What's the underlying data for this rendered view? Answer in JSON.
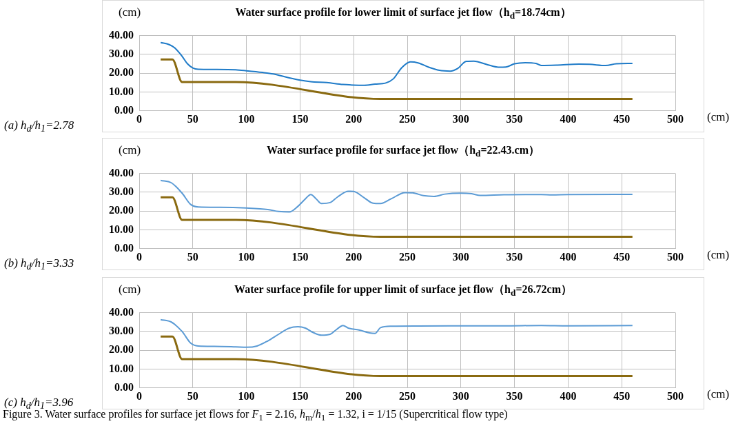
{
  "chart_data": [
    {
      "type": "line",
      "title": "Water surface profile for lower limit of surface jet flow（h$_{d}$=18.74cm）",
      "xlabel": "(cm)",
      "ylabel": "(cm)",
      "annotations": [
        "(a) h$_{d}$/h$_{1}$=2.78"
      ],
      "xlim": [
        0,
        500
      ],
      "xticks": [
        0,
        50,
        100,
        150,
        200,
        250,
        300,
        350,
        400,
        450,
        500
      ],
      "ylim": [
        0,
        40
      ],
      "yticks": [
        {
          "value": 0,
          "label": "0.00"
        },
        {
          "value": 10,
          "label": "10.00"
        },
        {
          "value": 20,
          "label": "20.00"
        },
        {
          "value": 30,
          "label": "30.00"
        },
        {
          "value": 40,
          "label": "40.00"
        }
      ],
      "grid": true,
      "legend": false,
      "marker": "none",
      "line_style": "solid",
      "series": [
        {
          "color": "#1f7bc8",
          "x": [
            20,
            28,
            33,
            40,
            45,
            50,
            55,
            70,
            90,
            100,
            115,
            125,
            140,
            150,
            160,
            175,
            190,
            200,
            210,
            220,
            230,
            237,
            245,
            253,
            260,
            270,
            280,
            290,
            297,
            305,
            312,
            325,
            335,
            342,
            350,
            360,
            370,
            375,
            390,
            410,
            420,
            435,
            445,
            460
          ],
          "values": [
            36.3,
            35.2,
            33.5,
            29,
            25,
            22.8,
            22.1,
            22,
            21.8,
            21.3,
            20.4,
            19.6,
            17.5,
            16.3,
            15.5,
            15,
            14,
            13.7,
            13.6,
            14.2,
            14.8,
            17,
            23,
            26,
            25.5,
            23.2,
            21.5,
            21.1,
            22.5,
            26.3,
            26.4,
            24.5,
            23.2,
            23.3,
            25,
            25.6,
            25.2,
            24.1,
            24.3,
            24.8,
            24.7,
            24.1,
            25,
            25.2
          ]
        },
        {
          "color": "#8a6a10",
          "x": [
            20,
            31,
            40,
            90,
            225,
            460
          ],
          "values": [
            27.3,
            27.3,
            15.3,
            15.3,
            6.3,
            6.3
          ]
        }
      ]
    },
    {
      "type": "line",
      "title": "Water surface profile for surface jet flow（h$_{d}$=22.43.cm）",
      "xlabel": "(cm)",
      "ylabel": "(cm)",
      "annotations": [
        "(b) h$_{d}$/h$_{1}$=3.33"
      ],
      "xlim": [
        0,
        500
      ],
      "xticks": [
        0,
        50,
        100,
        150,
        200,
        250,
        300,
        350,
        400,
        450,
        500
      ],
      "ylim": [
        0,
        40
      ],
      "yticks": [
        {
          "value": 0,
          "label": "0.00"
        },
        {
          "value": 10,
          "label": "10.00"
        },
        {
          "value": 20,
          "label": "20.00"
        },
        {
          "value": 30,
          "label": "30.00"
        },
        {
          "value": 40,
          "label": "40.00"
        }
      ],
      "grid": true,
      "legend": false,
      "marker": "none",
      "line_style": "solid",
      "series": [
        {
          "color": "#5b9bd5",
          "x": [
            20,
            30,
            40,
            48,
            55,
            75,
            100,
            120,
            130,
            140,
            148,
            155,
            160,
            165,
            170,
            178,
            185,
            195,
            200,
            210,
            218,
            225,
            235,
            248,
            255,
            265,
            275,
            285,
            300,
            310,
            318,
            340,
            360,
            375,
            385,
            400,
            460
          ],
          "values": [
            36.3,
            35,
            29.5,
            23.5,
            22.2,
            22,
            21.6,
            20.8,
            19.8,
            19.5,
            22.5,
            26.5,
            28.8,
            26.5,
            24,
            24.5,
            27.5,
            30.5,
            30.4,
            27,
            24.2,
            24,
            26.5,
            29.8,
            29.7,
            28.2,
            27.8,
            29,
            29.5,
            29.2,
            28.3,
            28.7,
            28.8,
            28.8,
            28.6,
            28.8,
            28.9
          ]
        },
        {
          "color": "#8a6a10",
          "x": [
            20,
            31,
            40,
            90,
            225,
            460
          ],
          "values": [
            27.3,
            27.3,
            15.3,
            15.3,
            6.3,
            6.3
          ]
        }
      ]
    },
    {
      "type": "line",
      "title": "Water surface profile for upper limit of surface jet flow（h$_{d}$=26.72cm）",
      "xlabel": "(cm)",
      "ylabel": "(cm)",
      "annotations": [
        "(c) h$_{d}$/h$_{1}$=3.96",
        "Figure 3. Water surface profiles for surface jet flows for F$_{1}$ = 2.16, h$_{m}$/h$_{1}$ = 1.32, i = 1/15 (Supercritical flow type)"
      ],
      "xlim": [
        0,
        500
      ],
      "xticks": [
        0,
        50,
        100,
        150,
        200,
        250,
        300,
        350,
        400,
        450,
        500
      ],
      "ylim": [
        0,
        40
      ],
      "yticks": [
        {
          "value": 0,
          "label": "0.00"
        },
        {
          "value": 10,
          "label": "10.00"
        },
        {
          "value": 20,
          "label": "20.00"
        },
        {
          "value": 30,
          "label": "30.00"
        },
        {
          "value": 40,
          "label": "40.00"
        }
      ],
      "grid": true,
      "legend": false,
      "marker": "none",
      "line_style": "solid",
      "series": [
        {
          "color": "#5b9bd5",
          "x": [
            20,
            30,
            40,
            48,
            55,
            70,
            90,
            100,
            110,
            120,
            130,
            140,
            148,
            155,
            162,
            170,
            178,
            185,
            190,
            195,
            205,
            215,
            220,
            225,
            235,
            260,
            300,
            340,
            375,
            400,
            460
          ],
          "values": [
            36.3,
            35,
            30,
            23.8,
            22.3,
            22.1,
            21.8,
            21.6,
            22.3,
            25,
            28.5,
            31.8,
            32.5,
            31.8,
            29.5,
            28,
            28.5,
            31.5,
            33.2,
            31.8,
            30.8,
            29.2,
            29,
            32,
            32.8,
            32.9,
            33,
            33,
            33.2,
            33,
            33.2
          ]
        },
        {
          "color": "#8a6a10",
          "x": [
            20,
            31,
            40,
            90,
            225,
            460
          ],
          "values": [
            27.3,
            27.3,
            15.3,
            15.3,
            6.3,
            6.3
          ]
        }
      ]
    }
  ]
}
